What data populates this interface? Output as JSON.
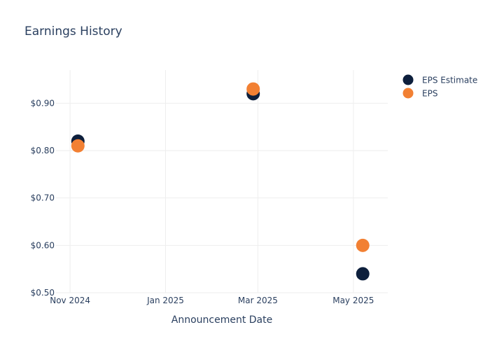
{
  "chart_data": {
    "type": "scatter",
    "title": "Earnings History",
    "xlabel": "Announcement Date",
    "ylabel": "",
    "x_ticks": [
      {
        "date": "2024-11-01",
        "label": "Nov 2024"
      },
      {
        "date": "2025-01-01",
        "label": "Jan 2025"
      },
      {
        "date": "2025-03-01",
        "label": "Mar 2025"
      },
      {
        "date": "2025-05-01",
        "label": "May 2025"
      }
    ],
    "xlim": [
      "2024-10-23",
      "2025-05-23"
    ],
    "ylim": [
      0.5,
      0.97
    ],
    "y_ticks": [
      {
        "value": 0.5,
        "label": "$0.50"
      },
      {
        "value": 0.6,
        "label": "$0.60"
      },
      {
        "value": 0.7,
        "label": "$0.70"
      },
      {
        "value": 0.8,
        "label": "$0.80"
      },
      {
        "value": 0.9,
        "label": "$0.90"
      }
    ],
    "grid": true,
    "legend_position": "top-right",
    "series": [
      {
        "name": "EPS Estimate",
        "color": "#0d1f3c",
        "points": [
          {
            "x": "2024-11-06",
            "y": 0.82
          },
          {
            "x": "2025-02-26",
            "y": 0.92
          },
          {
            "x": "2025-05-07",
            "y": 0.54
          }
        ]
      },
      {
        "name": "EPS",
        "color": "#f28033",
        "points": [
          {
            "x": "2024-11-06",
            "y": 0.81
          },
          {
            "x": "2025-02-26",
            "y": 0.93
          },
          {
            "x": "2025-05-07",
            "y": 0.6
          }
        ]
      }
    ]
  }
}
